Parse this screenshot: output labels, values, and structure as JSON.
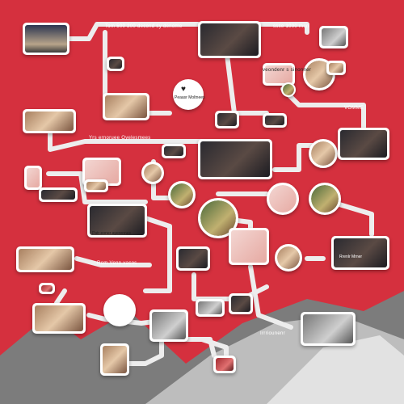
{
  "texts": {
    "t_top": "Tom 500 200 decond sy denome",
    "t_topright": "ssse 1000 mon",
    "t_center_right": "veondenr s sinonner",
    "t_vomme": "VOMME",
    "t_mid_left": "Yrs ernoruee Oyelesmees",
    "t_mid_lower": "Rem Venn vacos",
    "t_card_caption": "Patr eoner ayerennes",
    "t_heart_caption": "Peaasr Moltnees",
    "t_bottom_right": "Irrriounenr",
    "t_lower_right_card": "Rrenlr Mrner"
  },
  "colors": {
    "background": "#d5303e",
    "connector": "#ededed",
    "card": "#ffffff",
    "mountain": "#8a8a8a"
  },
  "icons": {
    "heart": "heart-icon"
  }
}
